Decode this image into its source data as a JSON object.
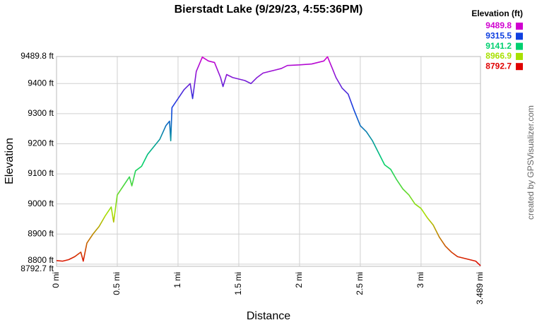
{
  "chart_data": {
    "type": "line",
    "title": "Bierstadt Lake (9/29/23, 4:55:36PM)",
    "x_label": "Distance",
    "y_label": "Elevation",
    "credit": "created by GPSVisualizer.com",
    "xlim": [
      0,
      3.489
    ],
    "ylim": [
      8792.7,
      9489.8
    ],
    "xticks": [
      {
        "value": 0,
        "label": "0 mi"
      },
      {
        "value": 0.5,
        "label": "0.5 mi"
      },
      {
        "value": 1,
        "label": "1 mi"
      },
      {
        "value": 1.5,
        "label": "1.5 mi"
      },
      {
        "value": 2,
        "label": "2 mi"
      },
      {
        "value": 2.5,
        "label": "2.5 mi"
      },
      {
        "value": 3,
        "label": "3 mi"
      },
      {
        "value": 3.489,
        "label": "3.489 mi"
      }
    ],
    "yticks": [
      {
        "value": 8792.7,
        "label": "8792.7 ft"
      },
      {
        "value": 8800,
        "label": "8800 ft"
      },
      {
        "value": 8900,
        "label": "8900 ft"
      },
      {
        "value": 9000,
        "label": "9000 ft"
      },
      {
        "value": 9100,
        "label": "9100 ft"
      },
      {
        "value": 9200,
        "label": "9200 ft"
      },
      {
        "value": 9300,
        "label": "9300 ft"
      },
      {
        "value": 9400,
        "label": "9400 ft"
      },
      {
        "value": 9489.8,
        "label": "9489.8 ft"
      }
    ],
    "grid": true,
    "color_scale": {
      "title": "Elevation (ft)",
      "stops": [
        {
          "value": 9489.8,
          "color": "#d000d0"
        },
        {
          "value": 9315.5,
          "color": "#1040e0"
        },
        {
          "value": 9141.2,
          "color": "#00d070"
        },
        {
          "value": 8966.9,
          "color": "#a8e000"
        },
        {
          "value": 8792.7,
          "color": "#e00000"
        }
      ]
    },
    "x": [
      0,
      0.05,
      0.1,
      0.15,
      0.2,
      0.22,
      0.25,
      0.3,
      0.35,
      0.4,
      0.45,
      0.47,
      0.5,
      0.55,
      0.6,
      0.62,
      0.65,
      0.7,
      0.75,
      0.8,
      0.85,
      0.9,
      0.93,
      0.94,
      0.95,
      1.0,
      1.05,
      1.1,
      1.12,
      1.15,
      1.2,
      1.25,
      1.3,
      1.35,
      1.37,
      1.4,
      1.45,
      1.5,
      1.55,
      1.6,
      1.65,
      1.7,
      1.75,
      1.8,
      1.85,
      1.9,
      2.0,
      2.1,
      2.2,
      2.23,
      2.27,
      2.3,
      2.35,
      2.4,
      2.45,
      2.5,
      2.55,
      2.6,
      2.65,
      2.7,
      2.75,
      2.8,
      2.85,
      2.9,
      2.95,
      3.0,
      3.05,
      3.1,
      3.15,
      3.2,
      3.25,
      3.3,
      3.35,
      3.4,
      3.45,
      3.489
    ],
    "values": [
      8812,
      8810,
      8815,
      8825,
      8840,
      8810,
      8870,
      8900,
      8925,
      8960,
      8990,
      8940,
      9030,
      9060,
      9090,
      9060,
      9110,
      9125,
      9165,
      9190,
      9215,
      9260,
      9275,
      9210,
      9320,
      9350,
      9380,
      9400,
      9350,
      9440,
      9488,
      9475,
      9470,
      9420,
      9390,
      9430,
      9420,
      9415,
      9410,
      9400,
      9420,
      9435,
      9440,
      9445,
      9450,
      9460,
      9462,
      9465,
      9475,
      9489,
      9450,
      9420,
      9385,
      9365,
      9310,
      9260,
      9240,
      9210,
      9170,
      9130,
      9115,
      9080,
      9050,
      9030,
      9000,
      8985,
      8955,
      8930,
      8890,
      8860,
      8840,
      8825,
      8820,
      8815,
      8810,
      8795
    ]
  }
}
